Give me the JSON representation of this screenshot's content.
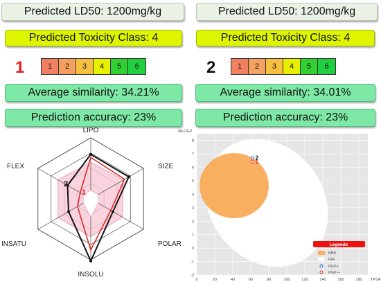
{
  "left": {
    "ld50": "Predicted LD50: 1200mg/kg",
    "tox_class": "Predicted Toxicity Class: 4",
    "compound_number": "1",
    "similarity": "Average similarity: 34.21%",
    "accuracy": "Prediction accuracy: 23%"
  },
  "right": {
    "ld50": "Predicted LD50: 1200mg/kg",
    "tox_class": "Predicted Toxicity Class: 4",
    "compound_number": "2",
    "similarity": "Average similarity: 34.01%",
    "accuracy": "Prediction accuracy: 23%"
  },
  "tox_scale": {
    "labels": [
      "1",
      "2",
      "3",
      "4",
      "5",
      "6"
    ],
    "colors": [
      "#f08060",
      "#f4a060",
      "#f8c040",
      "#e8f000",
      "#30d030",
      "#20d040"
    ]
  },
  "radar": {
    "axes": [
      "LIPO",
      "SIZE",
      "POLAR",
      "INSOLU",
      "INSATU",
      "FLEX"
    ],
    "compound_labels": [
      "1",
      "2"
    ]
  },
  "boiled_egg": {
    "x_axis_label": "TPSA",
    "y_axis_label": "WLOGP",
    "x_ticks": [
      "0",
      "20",
      "40",
      "60",
      "80",
      "100",
      "120",
      "140",
      "160",
      "180"
    ],
    "y_ticks": [
      "-2",
      "-1",
      "0",
      "1",
      "2",
      "3",
      "4",
      "5",
      "6",
      "7",
      "8"
    ],
    "points": [
      {
        "label": "2",
        "tpsa": 62,
        "wlogp": 6.7,
        "color": "#2255cc"
      },
      {
        "label": "1",
        "tpsa": 62,
        "wlogp": 6.4,
        "color": "#dd2222"
      }
    ],
    "legend": {
      "title": "Legends",
      "items": [
        "BBB",
        "HIA",
        "PGP+",
        "PGP—"
      ]
    }
  }
}
